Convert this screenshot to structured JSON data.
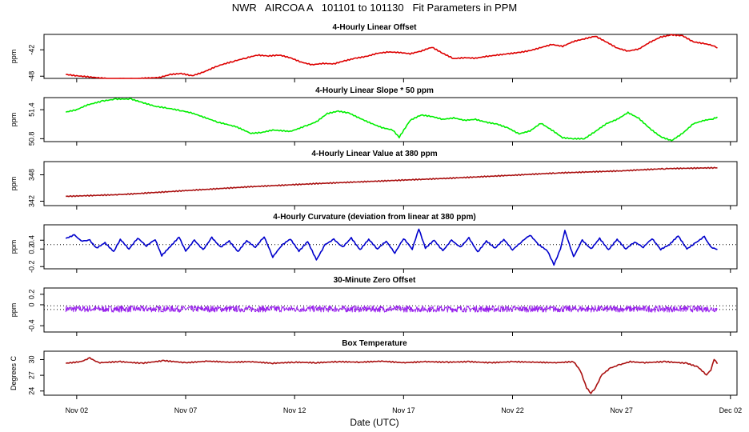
{
  "chart_data": {
    "type": "line",
    "title": "NWR   AIRCOA A   101101 to 101130   Fit Parameters in PPM",
    "xlabel": "Date (UTC)",
    "x_ticks": [
      "Nov 02",
      "Nov 07",
      "Nov 12",
      "Nov 17",
      "Nov 22",
      "Nov 27",
      "Dec 02"
    ],
    "x_tick_days": [
      2,
      7,
      12,
      17,
      22,
      27,
      32
    ],
    "xlim": [
      0.5,
      32.3
    ],
    "panels": [
      {
        "id": "linear-offset",
        "title": "4-Hourly Linear Offset",
        "ylabel": "ppm",
        "yticks": [
          "-48",
          "-42"
        ],
        "ytick_values": [
          -48,
          -42
        ],
        "ylim": [
          -48.5,
          -38.5
        ],
        "color": "#dd0000",
        "series": [
          [
            1.5,
            -47.6
          ],
          [
            2.0,
            -47.9
          ],
          [
            3.5,
            -48.6
          ],
          [
            4.5,
            -48.6
          ],
          [
            5.8,
            -48.3
          ],
          [
            6.3,
            -47.6
          ],
          [
            6.8,
            -47.4
          ],
          [
            7.3,
            -47.9
          ],
          [
            7.8,
            -47.1
          ],
          [
            8.5,
            -45.6
          ],
          [
            9.2,
            -44.6
          ],
          [
            9.8,
            -43.8
          ],
          [
            10.3,
            -43.2
          ],
          [
            10.8,
            -43.4
          ],
          [
            11.3,
            -43.2
          ],
          [
            11.8,
            -43.8
          ],
          [
            12.3,
            -44.8
          ],
          [
            12.8,
            -45.4
          ],
          [
            13.3,
            -45.1
          ],
          [
            13.8,
            -45.2
          ],
          [
            14.3,
            -44.5
          ],
          [
            14.8,
            -43.9
          ],
          [
            15.3,
            -43.5
          ],
          [
            15.8,
            -42.8
          ],
          [
            16.3,
            -42.5
          ],
          [
            16.8,
            -42.6
          ],
          [
            17.3,
            -42.9
          ],
          [
            17.8,
            -42.3
          ],
          [
            18.3,
            -41.4
          ],
          [
            18.8,
            -42.8
          ],
          [
            19.3,
            -44.0
          ],
          [
            19.8,
            -43.8
          ],
          [
            20.3,
            -43.9
          ],
          [
            20.8,
            -43.5
          ],
          [
            21.3,
            -43.2
          ],
          [
            21.8,
            -42.9
          ],
          [
            22.3,
            -42.6
          ],
          [
            22.8,
            -42.2
          ],
          [
            23.3,
            -41.5
          ],
          [
            23.8,
            -40.8
          ],
          [
            24.3,
            -41.2
          ],
          [
            24.8,
            -40.1
          ],
          [
            25.3,
            -39.5
          ],
          [
            25.8,
            -38.9
          ],
          [
            26.3,
            -40.2
          ],
          [
            26.8,
            -41.6
          ],
          [
            27.3,
            -42.3
          ],
          [
            27.8,
            -41.8
          ],
          [
            28.3,
            -40.3
          ],
          [
            28.8,
            -39.1
          ],
          [
            29.3,
            -38.6
          ],
          [
            29.8,
            -38.8
          ],
          [
            30.3,
            -40.2
          ],
          [
            30.8,
            -40.6
          ],
          [
            31.2,
            -41.0
          ],
          [
            31.4,
            -41.6
          ]
        ]
      },
      {
        "id": "linear-slope",
        "title": "4-Hourly Linear Slope * 50 ppm",
        "ylabel": "ppm",
        "yticks": [
          "50.8",
          "51.4"
        ],
        "ytick_values": [
          50.8,
          51.4
        ],
        "ylim": [
          50.74,
          51.65
        ],
        "color": "#00ee00",
        "series": [
          [
            1.5,
            51.35
          ],
          [
            2.0,
            51.4
          ],
          [
            2.5,
            51.5
          ],
          [
            3.2,
            51.58
          ],
          [
            3.8,
            51.62
          ],
          [
            4.5,
            51.62
          ],
          [
            5.0,
            51.55
          ],
          [
            5.6,
            51.47
          ],
          [
            6.2,
            51.43
          ],
          [
            6.8,
            51.38
          ],
          [
            7.3,
            51.33
          ],
          [
            7.8,
            51.25
          ],
          [
            8.5,
            51.14
          ],
          [
            9.3,
            51.05
          ],
          [
            10.0,
            50.91
          ],
          [
            10.5,
            50.93
          ],
          [
            11.0,
            50.98
          ],
          [
            11.8,
            50.95
          ],
          [
            12.5,
            51.06
          ],
          [
            13.0,
            51.15
          ],
          [
            13.5,
            51.32
          ],
          [
            14.0,
            51.37
          ],
          [
            14.5,
            51.33
          ],
          [
            15.0,
            51.22
          ],
          [
            15.5,
            51.12
          ],
          [
            16.0,
            51.03
          ],
          [
            16.5,
            50.98
          ],
          [
            16.8,
            50.83
          ],
          [
            17.3,
            51.18
          ],
          [
            17.8,
            51.29
          ],
          [
            18.3,
            51.26
          ],
          [
            18.8,
            51.2
          ],
          [
            19.3,
            51.23
          ],
          [
            19.8,
            51.18
          ],
          [
            20.3,
            51.2
          ],
          [
            20.8,
            51.14
          ],
          [
            21.3,
            51.1
          ],
          [
            21.8,
            51.02
          ],
          [
            22.3,
            50.9
          ],
          [
            22.8,
            50.96
          ],
          [
            23.3,
            51.12
          ],
          [
            23.8,
            50.98
          ],
          [
            24.3,
            50.82
          ],
          [
            24.8,
            50.8
          ],
          [
            25.3,
            50.8
          ],
          [
            25.8,
            50.95
          ],
          [
            26.3,
            51.11
          ],
          [
            26.8,
            51.2
          ],
          [
            27.3,
            51.34
          ],
          [
            27.8,
            51.22
          ],
          [
            28.3,
            51.01
          ],
          [
            28.8,
            50.84
          ],
          [
            29.3,
            50.76
          ],
          [
            29.8,
            50.91
          ],
          [
            30.3,
            51.11
          ],
          [
            30.8,
            51.18
          ],
          [
            31.2,
            51.21
          ],
          [
            31.4,
            51.25
          ]
        ]
      },
      {
        "id": "linear-value",
        "title": "4-Hourly Linear Value at 380 ppm",
        "ylabel": "ppm",
        "yticks": [
          "342",
          "348"
        ],
        "ytick_values": [
          342,
          348
        ],
        "ylim": [
          341.0,
          351.0
        ],
        "color": "#aa1111",
        "series": [
          [
            1.5,
            343.1
          ],
          [
            4.0,
            343.5
          ],
          [
            7.0,
            344.4
          ],
          [
            10.0,
            345.3
          ],
          [
            13.0,
            346.0
          ],
          [
            16.0,
            346.6
          ],
          [
            19.0,
            347.2
          ],
          [
            22.0,
            347.9
          ],
          [
            24.0,
            348.4
          ],
          [
            27.0,
            348.9
          ],
          [
            29.0,
            349.4
          ],
          [
            31.4,
            349.6
          ]
        ]
      },
      {
        "id": "curvature",
        "title": "4-Hourly Curvature (deviation from linear at 380 ppm)",
        "ylabel": "ppm",
        "yticks": [
          "-0.2",
          "0.2",
          "0.4"
        ],
        "ytick_values": [
          -0.2,
          0.2,
          0.4
        ],
        "ylim": [
          -0.25,
          0.75
        ],
        "reference_line": 0.3,
        "color": "#0000cc",
        "series": [
          [
            1.5,
            0.44
          ],
          [
            1.9,
            0.52
          ],
          [
            2.2,
            0.38
          ],
          [
            2.6,
            0.4
          ],
          [
            2.9,
            0.22
          ],
          [
            3.3,
            0.34
          ],
          [
            3.7,
            0.14
          ],
          [
            4.0,
            0.42
          ],
          [
            4.4,
            0.2
          ],
          [
            4.8,
            0.45
          ],
          [
            5.2,
            0.27
          ],
          [
            5.6,
            0.42
          ],
          [
            5.9,
            0.05
          ],
          [
            6.3,
            0.26
          ],
          [
            6.7,
            0.47
          ],
          [
            7.0,
            0.15
          ],
          [
            7.4,
            0.4
          ],
          [
            7.8,
            0.18
          ],
          [
            8.2,
            0.46
          ],
          [
            8.6,
            0.24
          ],
          [
            9.0,
            0.38
          ],
          [
            9.4,
            0.14
          ],
          [
            9.8,
            0.39
          ],
          [
            10.2,
            0.24
          ],
          [
            10.6,
            0.48
          ],
          [
            11.0,
            0.02
          ],
          [
            11.4,
            0.28
          ],
          [
            11.8,
            0.43
          ],
          [
            12.2,
            0.15
          ],
          [
            12.6,
            0.37
          ],
          [
            13.0,
            -0.05
          ],
          [
            13.4,
            0.3
          ],
          [
            13.8,
            0.42
          ],
          [
            14.2,
            0.24
          ],
          [
            14.6,
            0.45
          ],
          [
            15.0,
            0.18
          ],
          [
            15.4,
            0.42
          ],
          [
            15.8,
            0.2
          ],
          [
            16.2,
            0.38
          ],
          [
            16.6,
            0.11
          ],
          [
            17.0,
            0.44
          ],
          [
            17.4,
            0.2
          ],
          [
            17.7,
            0.66
          ],
          [
            18.0,
            0.22
          ],
          [
            18.4,
            0.4
          ],
          [
            18.8,
            0.16
          ],
          [
            19.2,
            0.4
          ],
          [
            19.6,
            0.24
          ],
          [
            20.0,
            0.45
          ],
          [
            20.4,
            0.13
          ],
          [
            20.8,
            0.38
          ],
          [
            21.2,
            0.22
          ],
          [
            21.6,
            0.42
          ],
          [
            22.0,
            0.18
          ],
          [
            22.4,
            0.36
          ],
          [
            22.8,
            0.52
          ],
          [
            23.2,
            0.3
          ],
          [
            23.6,
            0.16
          ],
          [
            23.9,
            -0.16
          ],
          [
            24.2,
            0.2
          ],
          [
            24.4,
            0.62
          ],
          [
            24.8,
            0.02
          ],
          [
            25.2,
            0.4
          ],
          [
            25.6,
            0.2
          ],
          [
            26.0,
            0.44
          ],
          [
            26.4,
            0.18
          ],
          [
            26.8,
            0.42
          ],
          [
            27.2,
            0.2
          ],
          [
            27.6,
            0.36
          ],
          [
            28.0,
            0.24
          ],
          [
            28.4,
            0.44
          ],
          [
            28.8,
            0.19
          ],
          [
            29.2,
            0.3
          ],
          [
            29.6,
            0.5
          ],
          [
            30.0,
            0.2
          ],
          [
            30.4,
            0.34
          ],
          [
            30.8,
            0.48
          ],
          [
            31.1,
            0.24
          ],
          [
            31.4,
            0.19
          ]
        ]
      },
      {
        "id": "zero-offset",
        "title": "30-Minute Zero Offset",
        "ylabel": "ppm",
        "yticks": [
          "-0.4",
          "0",
          "0.2"
        ],
        "ytick_values": [
          -0.4,
          0.0,
          0.2
        ],
        "ylim": [
          -0.52,
          0.32
        ],
        "reference_lines": [
          -0.02,
          -0.09
        ],
        "color": "#9922ee",
        "series_mean": -0.08,
        "series_noise": 0.06,
        "series_range": [
          1.5,
          31.4
        ]
      },
      {
        "id": "box-temperature",
        "title": "Box Temperature",
        "ylabel": "Degrees C",
        "yticks": [
          "24",
          "27",
          "30"
        ],
        "ytick_values": [
          24,
          27,
          30
        ],
        "ylim": [
          23.2,
          31.6
        ],
        "color": "#aa1111",
        "series": [
          [
            1.5,
            29.3
          ],
          [
            2.2,
            29.6
          ],
          [
            2.6,
            30.3
          ],
          [
            3.0,
            29.4
          ],
          [
            4.0,
            29.6
          ],
          [
            5.0,
            29.3
          ],
          [
            6.0,
            29.8
          ],
          [
            7.0,
            29.4
          ],
          [
            8.0,
            29.7
          ],
          [
            9.0,
            29.5
          ],
          [
            10.0,
            29.6
          ],
          [
            11.0,
            29.3
          ],
          [
            12.0,
            29.5
          ],
          [
            13.0,
            29.4
          ],
          [
            14.0,
            29.6
          ],
          [
            15.0,
            29.5
          ],
          [
            16.0,
            29.7
          ],
          [
            17.0,
            29.4
          ],
          [
            18.0,
            29.6
          ],
          [
            19.0,
            29.5
          ],
          [
            20.0,
            29.6
          ],
          [
            21.0,
            29.4
          ],
          [
            22.0,
            29.6
          ],
          [
            23.0,
            29.5
          ],
          [
            24.0,
            29.4
          ],
          [
            24.8,
            29.6
          ],
          [
            25.1,
            28.0
          ],
          [
            25.4,
            24.6
          ],
          [
            25.6,
            23.6
          ],
          [
            25.8,
            24.6
          ],
          [
            26.1,
            27.1
          ],
          [
            26.5,
            28.4
          ],
          [
            26.9,
            29.0
          ],
          [
            27.4,
            29.6
          ],
          [
            28.0,
            29.4
          ],
          [
            29.0,
            29.6
          ],
          [
            30.0,
            29.3
          ],
          [
            30.5,
            28.6
          ],
          [
            30.9,
            27.1
          ],
          [
            31.1,
            28.0
          ],
          [
            31.25,
            30.1
          ],
          [
            31.4,
            29.2
          ]
        ]
      }
    ]
  }
}
